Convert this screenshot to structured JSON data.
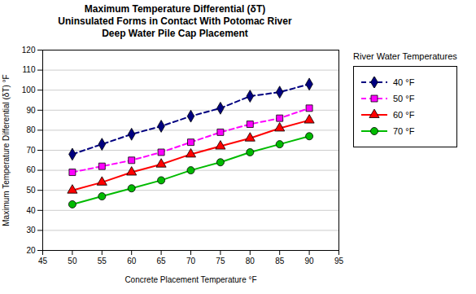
{
  "chart_data": {
    "type": "line",
    "title": "Maximum Temperature Differential (δT)\nUninsulated Forms in Contact With Potomac River\nDeep Water Pile Cap Placement",
    "legend_title": "River Water Temperatures",
    "xlabel": "Concrete Placement Temperature °F",
    "ylabel": "Maximum Temperature Differential (δT) °F",
    "x": [
      50,
      55,
      60,
      65,
      70,
      75,
      80,
      85,
      90
    ],
    "xlim": [
      45,
      95
    ],
    "ylim": [
      20,
      120
    ],
    "xticks": [
      45,
      50,
      55,
      60,
      65,
      70,
      75,
      80,
      85,
      90,
      95
    ],
    "yticks": [
      20,
      30,
      40,
      50,
      60,
      70,
      80,
      90,
      100,
      110,
      120
    ],
    "grid": true,
    "legend": "right",
    "series": [
      {
        "name": "40 °F",
        "color": "#000080",
        "line_style": "dashed",
        "marker": "diamond",
        "values": [
          68,
          73,
          78,
          82,
          87,
          91,
          97,
          99,
          103
        ]
      },
      {
        "name": "50 °F",
        "color": "#ff00ff",
        "line_style": "dashed",
        "marker": "square",
        "values": [
          59,
          62,
          65,
          69,
          74,
          79,
          83,
          86,
          91
        ]
      },
      {
        "name": "60 °F",
        "color": "#ff0000",
        "line_style": "solid",
        "marker": "triangle",
        "values": [
          50,
          54,
          59,
          63,
          68,
          72,
          76,
          81,
          85
        ]
      },
      {
        "name": "70 °F",
        "color": "#00bb00",
        "line_style": "solid",
        "marker": "circle",
        "values": [
          43,
          47,
          51,
          55,
          60,
          64,
          69,
          73,
          77
        ]
      }
    ]
  }
}
